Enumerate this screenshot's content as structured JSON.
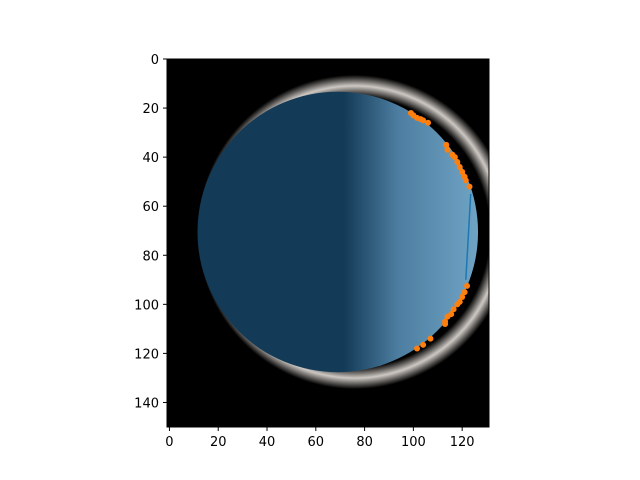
{
  "chart_data": {
    "type": "scatter",
    "title": "",
    "xlabel": "",
    "ylabel": "",
    "xlim": [
      -1,
      131
    ],
    "ylim": [
      150,
      0
    ],
    "y_inverted": true,
    "grid": false,
    "x_ticks": [
      0,
      20,
      40,
      60,
      80,
      100,
      120
    ],
    "y_ticks": [
      0,
      20,
      40,
      60,
      80,
      100,
      120,
      140
    ],
    "background_image": {
      "description_kind": "image",
      "background_color": "#000000",
      "disc": {
        "cx": 69,
        "cy": 70.5,
        "r": 57.5
      },
      "halo_color": "#f2ece6",
      "dark_color": "#133a57",
      "light_color": "#6fa3c4"
    },
    "line": {
      "color": "#1f77b4",
      "x": [
        123.5,
        121.5
      ],
      "y": [
        55,
        90
      ]
    },
    "series": [
      {
        "color": "#ff7f0e",
        "marker": "circle",
        "points": [
          [
            99,
            22
          ],
          [
            100,
            23
          ],
          [
            101.5,
            24
          ],
          [
            103,
            24.5
          ],
          [
            104,
            25
          ],
          [
            106,
            26
          ],
          [
            113.5,
            35
          ],
          [
            114,
            37
          ],
          [
            116,
            39
          ],
          [
            117,
            40
          ],
          [
            118,
            42
          ],
          [
            119,
            44
          ],
          [
            120,
            46
          ],
          [
            121,
            48
          ],
          [
            121.5,
            49.5
          ],
          [
            123,
            52
          ],
          [
            122,
            92.5
          ],
          [
            121,
            95
          ],
          [
            120,
            97
          ],
          [
            119,
            99
          ],
          [
            118,
            100
          ],
          [
            116.5,
            102
          ],
          [
            115.5,
            104
          ],
          [
            114,
            105
          ],
          [
            113,
            107
          ],
          [
            113,
            108
          ],
          [
            107,
            114
          ],
          [
            104,
            116.5
          ],
          [
            101.5,
            118
          ]
        ]
      }
    ]
  }
}
